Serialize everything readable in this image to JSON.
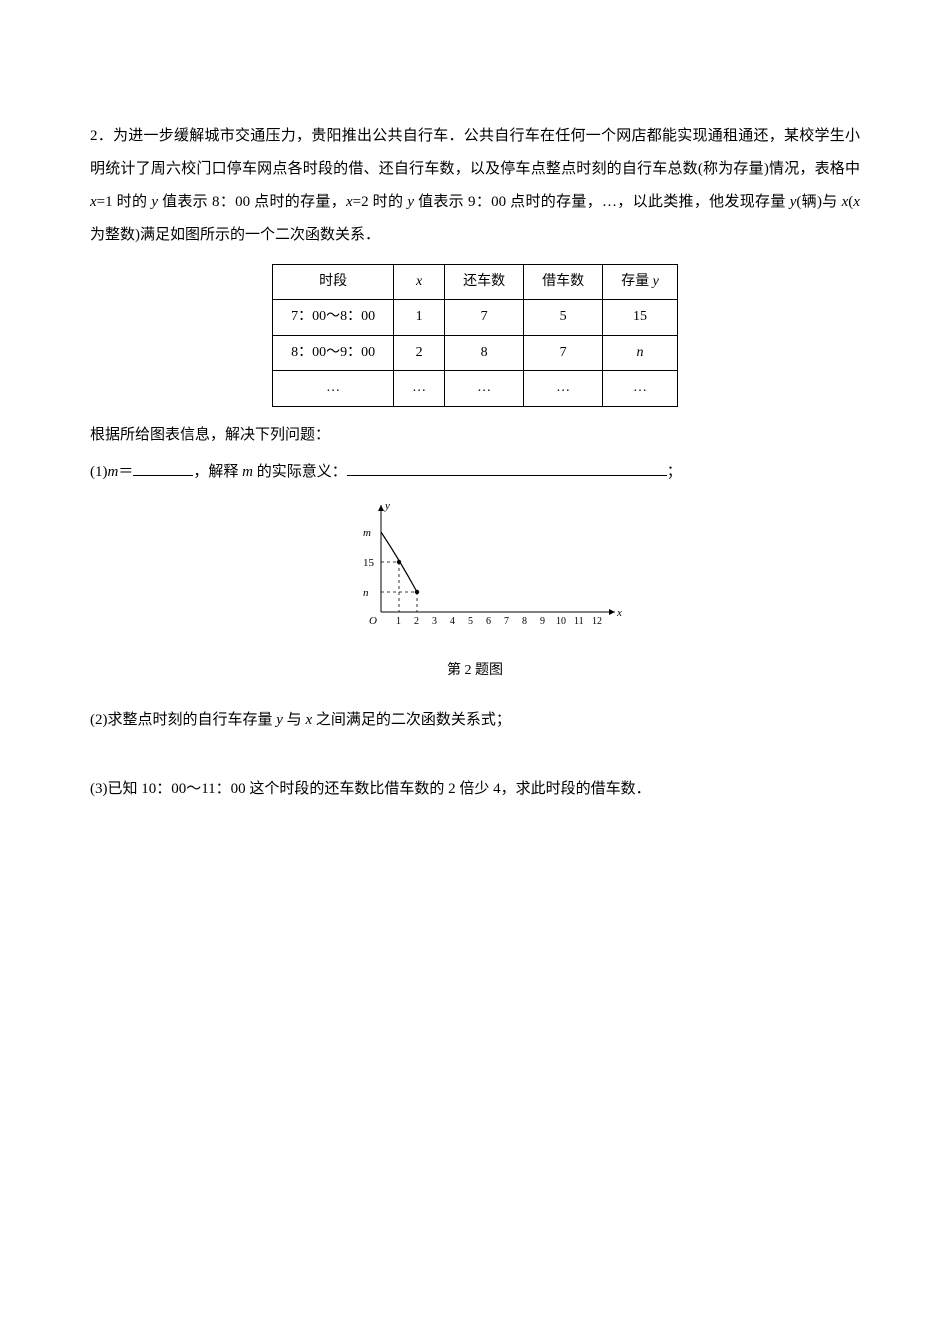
{
  "problem": {
    "number": "2",
    "text_line1": "2．为进一步缓解城市交通压力，贵阳推出公共自行车．公共自行车在任何一个网店都能实现通租通还，某校学生小明统计了周六校门口停车网点各时段的借、还自行车数，以及停车点整点时刻的自行车总数(称为存量)情况，表格中 ",
    "text_mid1": "=1 时的 ",
    "text_mid2": " 值表示 8：00 点时的存量，",
    "text_mid3": "=2 时的 ",
    "text_mid4": " 值表示 9：00 点时的存量，…，以此类推，他发现存量 ",
    "text_mid5": "(辆)与 ",
    "text_mid6": "(",
    "text_mid7": " 为整数)满足如图所示的一个二次函数关系．",
    "x_var": "x",
    "y_var": "y"
  },
  "table": {
    "headers": [
      "时段",
      "x",
      "还车数",
      "借车数",
      "存量 y"
    ],
    "rows": [
      [
        "7：00～8：00",
        "1",
        "7",
        "5",
        "15"
      ],
      [
        "8：00～9：00",
        "2",
        "8",
        "7",
        "n"
      ],
      [
        "…",
        "…",
        "…",
        "…",
        "…"
      ]
    ]
  },
  "subtext": "根据所给图表信息，解决下列问题：",
  "q1": {
    "prefix": "(1)",
    "var": "m",
    "eq": "＝",
    "mid": "，解释 ",
    "mid2": " 的实际意义：",
    "tail": "；"
  },
  "chart": {
    "y_labels": [
      "n",
      "15",
      "m"
    ],
    "y_positions": [
      8,
      20,
      32
    ],
    "x_ticks": [
      "1",
      "2",
      "3",
      "4",
      "5",
      "6",
      "7",
      "8",
      "9",
      "10",
      "11",
      "12"
    ],
    "origin_label": "O",
    "x_axis_label": "x",
    "y_axis_label": "y",
    "axis_color": "#000000",
    "dash_color": "#000000",
    "point_color": "#000000",
    "tick_fontsize": 10,
    "label_fontsize": 11,
    "curve_visible_from_x": 0,
    "curve_points": [
      {
        "x": 0,
        "y": 32
      },
      {
        "x": 1,
        "y": 20
      },
      {
        "x": 2,
        "y": 8
      }
    ]
  },
  "caption": "第 2 题图",
  "q2": "(2)求整点时刻的自行车存量 y 与 x 之间满足的二次函数关系式；",
  "q3": "(3)已知 10：00～11：00 这个时段的还车数比借车数的 2 倍少 4，求此时段的借车数．"
}
